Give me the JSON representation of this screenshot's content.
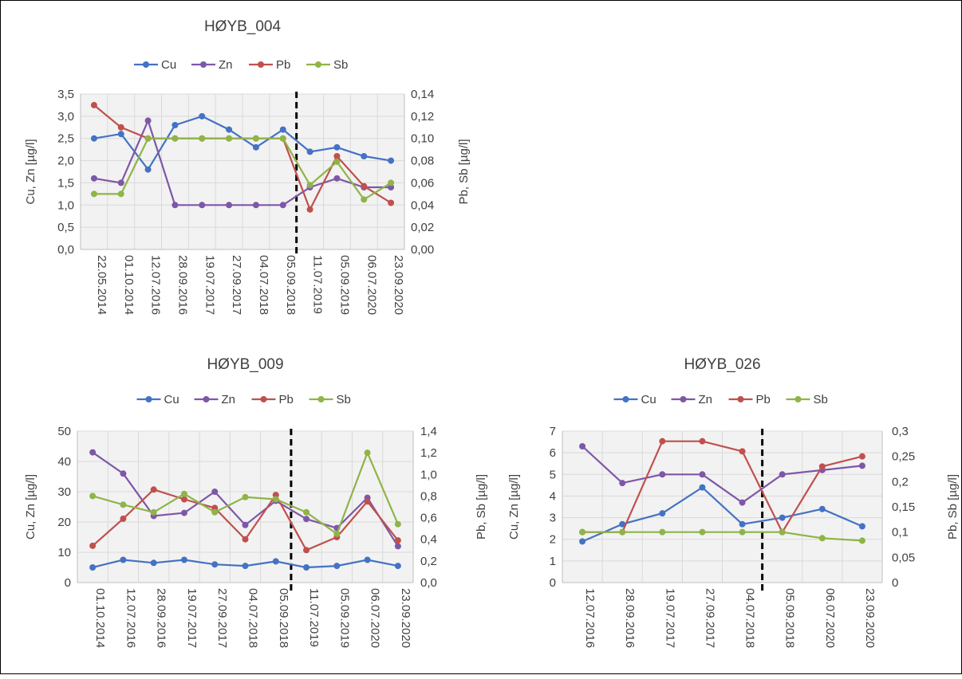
{
  "chart_data": [
    {
      "type": "line",
      "title": "HØYB_004",
      "ylabel": "Cu, Zn [µg/l]",
      "y2label": "Pb, Sb [µg/l]",
      "ylim": [
        0,
        3.5
      ],
      "y2lim": [
        0,
        0.14
      ],
      "yticks": [
        "0,0",
        "0,5",
        "1,0",
        "1,5",
        "2,0",
        "2,5",
        "3,0",
        "3,5"
      ],
      "y2ticks": [
        "0,00",
        "0,02",
        "0,04",
        "0,06",
        "0,08",
        "0,10",
        "0,12",
        "0,14"
      ],
      "categories": [
        "22.05.2014",
        "01.10.2014",
        "12.07.2016",
        "28.09.2016",
        "19.07.2017",
        "27.09.2017",
        "04.07.2018",
        "05.09.2018",
        "11.07.2019",
        "05.09.2019",
        "06.07.2020",
        "23.09.2020"
      ],
      "divider_after_index": 7,
      "grid": true,
      "legend": "top",
      "series": [
        {
          "name": "Cu",
          "axis": "left",
          "color": "#4472C4",
          "values": [
            2.5,
            2.6,
            1.8,
            2.8,
            3.0,
            2.7,
            2.3,
            2.7,
            2.2,
            2.3,
            2.1,
            2.0
          ]
        },
        {
          "name": "Zn",
          "axis": "left",
          "color": "#7E57A8",
          "values": [
            1.6,
            1.5,
            2.9,
            1.0,
            1.0,
            1.0,
            1.0,
            1.0,
            1.4,
            1.6,
            1.4,
            1.4
          ]
        },
        {
          "name": "Pb",
          "axis": "right",
          "color": "#C0504D",
          "values": [
            0.13,
            0.11,
            0.1,
            0.1,
            0.1,
            0.1,
            0.1,
            0.1,
            0.036,
            0.084,
            0.057,
            0.042
          ]
        },
        {
          "name": "Sb",
          "axis": "right",
          "color": "#8FB447",
          "values": [
            0.05,
            0.05,
            0.1,
            0.1,
            0.1,
            0.1,
            0.1,
            0.1,
            0.058,
            0.079,
            0.045,
            0.06
          ]
        }
      ]
    },
    {
      "type": "line",
      "title": "HØYB_009",
      "ylabel": "Cu, Zn [µg/l]",
      "y2label": "Pb, Sb [µg/l]",
      "ylim": [
        0,
        50
      ],
      "y2lim": [
        0,
        1.4
      ],
      "yticks": [
        "0",
        "10",
        "20",
        "30",
        "40",
        "50"
      ],
      "y2ticks": [
        "0,0",
        "0,2",
        "0,4",
        "0,6",
        "0,8",
        "1,0",
        "1,2",
        "1,4"
      ],
      "categories": [
        "01.10.2014",
        "12.07.2016",
        "28.09.2016",
        "19.07.2017",
        "27.09.2017",
        "04.07.2018",
        "05.09.2018",
        "11.07.2019",
        "05.09.2019",
        "06.07.2020",
        "23.09.2020"
      ],
      "divider_after_index": 6,
      "grid": true,
      "legend": "top",
      "series": [
        {
          "name": "Cu",
          "axis": "left",
          "color": "#4472C4",
          "values": [
            5,
            7.5,
            6.5,
            7.5,
            6,
            5.5,
            7,
            5,
            5.5,
            7.5,
            5.5
          ]
        },
        {
          "name": "Zn",
          "axis": "left",
          "color": "#7E57A8",
          "values": [
            43,
            36,
            22,
            23,
            30,
            19,
            27,
            21,
            18,
            28,
            12
          ]
        },
        {
          "name": "Pb",
          "axis": "right",
          "color": "#C0504D",
          "values": [
            0.34,
            0.59,
            0.86,
            0.77,
            0.69,
            0.4,
            0.81,
            0.3,
            0.42,
            0.75,
            0.39
          ]
        },
        {
          "name": "Sb",
          "axis": "right",
          "color": "#8FB447",
          "values": [
            0.8,
            0.72,
            0.65,
            0.82,
            0.65,
            0.79,
            0.77,
            0.65,
            0.45,
            1.2,
            0.54
          ]
        }
      ]
    },
    {
      "type": "line",
      "title": "HØYB_026",
      "ylabel": "Cu, Zn [µg/l]",
      "y2label": "Pb, Sb [µg/l]",
      "ylim": [
        0,
        7
      ],
      "y2lim": [
        0,
        0.3
      ],
      "yticks": [
        "0",
        "1",
        "2",
        "3",
        "4",
        "5",
        "6",
        "7"
      ],
      "y2ticks": [
        "0",
        "0,05",
        "0,1",
        "0,15",
        "0,2",
        "0,25",
        "0,3"
      ],
      "categories": [
        "12.07.2016",
        "28.09.2016",
        "19.07.2017",
        "27.09.2017",
        "04.07.2018",
        "05.09.2018",
        "06.07.2020",
        "23.09.2020"
      ],
      "divider_after_index": 4,
      "grid": true,
      "legend": "top",
      "series": [
        {
          "name": "Cu",
          "axis": "left",
          "color": "#4472C4",
          "values": [
            1.9,
            2.7,
            3.2,
            4.4,
            2.7,
            3.0,
            3.4,
            2.6
          ]
        },
        {
          "name": "Zn",
          "axis": "left",
          "color": "#7E57A8",
          "values": [
            6.3,
            4.6,
            5.0,
            5.0,
            3.7,
            5.0,
            5.2,
            5.4
          ]
        },
        {
          "name": "Pb",
          "axis": "right",
          "color": "#C0504D",
          "values": [
            0.1,
            0.1,
            0.28,
            0.28,
            0.26,
            0.1,
            0.23,
            0.25
          ]
        },
        {
          "name": "Sb",
          "axis": "right",
          "color": "#8FB447",
          "values": [
            0.1,
            0.1,
            0.1,
            0.1,
            0.1,
            0.1,
            0.088,
            0.083
          ]
        }
      ]
    }
  ]
}
